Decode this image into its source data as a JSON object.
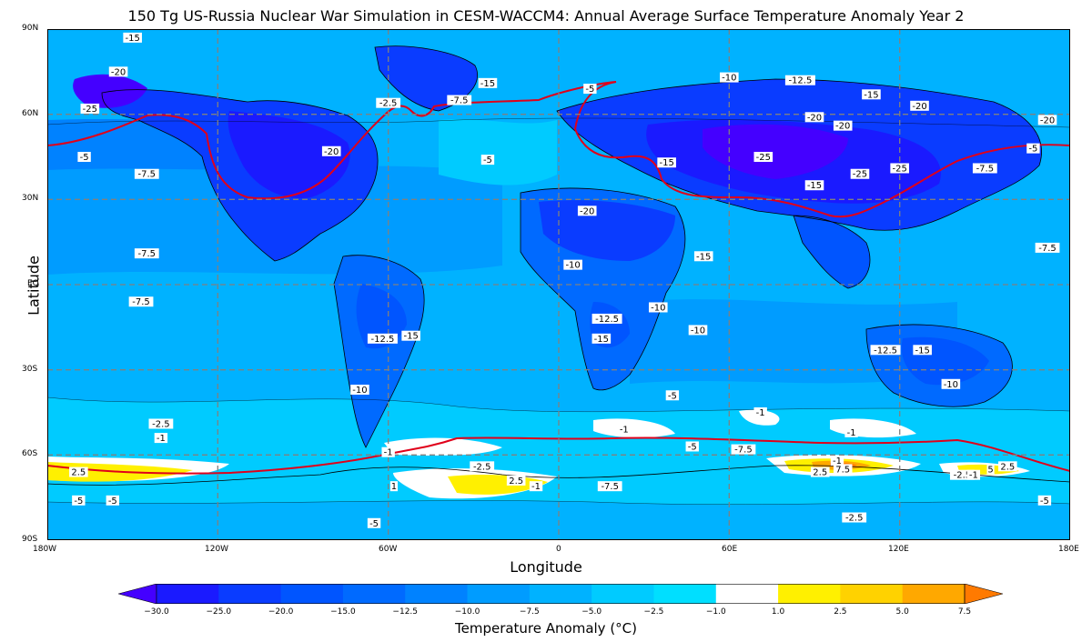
{
  "title": "150 Tg US-Russia Nuclear War Simulation in CESM-WACCM4: Annual Average Surface Temperature Anomaly Year 2",
  "axes": {
    "xlabel": "Longitude",
    "ylabel": "Latitude",
    "xticks": [
      "180W",
      "120W",
      "60W",
      "0",
      "60E",
      "120E",
      "180E"
    ],
    "yticks": [
      "90N",
      "60N",
      "30N",
      "EQ",
      "30S",
      "60S",
      "90S"
    ]
  },
  "colorbar": {
    "label": "Temperature Anomaly ( $^\\circ C$)",
    "label_display": "Temperature Anomaly (°C)",
    "ticks": [
      "−30.0",
      "−25.0",
      "−20.0",
      "−15.0",
      "−12.5",
      "−10.0",
      "−7.5",
      "−5.0",
      "−2.5",
      "−1.0",
      "1.0",
      "2.5",
      "5.0",
      "7.5"
    ],
    "levels": [
      -30,
      -25,
      -20,
      -15,
      -12.5,
      -10,
      -7.5,
      -5,
      -2.5,
      -1,
      1,
      2.5,
      5,
      7.5
    ],
    "colors": [
      "#4400ff",
      "#1a1aff",
      "#0a3cff",
      "#0055ff",
      "#006aff",
      "#0082ff",
      "#009cff",
      "#00b2ff",
      "#00cbff",
      "#00dfff",
      "#ffffff",
      "#fff000",
      "#ffd200",
      "#ffa800",
      "#ff7a00"
    ]
  },
  "chart_data": {
    "type": "heatmap",
    "title": "150 Tg US-Russia Nuclear War Simulation in CESM-WACCM4: Annual Average Surface Temperature Anomaly Year 2",
    "xlabel": "Longitude",
    "ylabel": "Latitude",
    "xlim": [
      -180,
      180
    ],
    "ylim": [
      -90,
      90
    ],
    "contour_labels": [
      {
        "lon": -150,
        "lat": 87,
        "text": "-15"
      },
      {
        "lon": -155,
        "lat": 75,
        "text": "-20"
      },
      {
        "lon": -165,
        "lat": 62,
        "text": "-25"
      },
      {
        "lon": -167,
        "lat": 45,
        "text": "-5"
      },
      {
        "lon": -145,
        "lat": 39,
        "text": "-7.5"
      },
      {
        "lon": -80,
        "lat": 47,
        "text": "-20"
      },
      {
        "lon": -60,
        "lat": 64,
        "text": "-2.5"
      },
      {
        "lon": -35,
        "lat": 65,
        "text": "-7.5"
      },
      {
        "lon": -25,
        "lat": 71,
        "text": "-15"
      },
      {
        "lon": 11,
        "lat": 69,
        "text": "-5"
      },
      {
        "lon": -25,
        "lat": 44,
        "text": "-5"
      },
      {
        "lon": 60,
        "lat": 73,
        "text": "-10"
      },
      {
        "lon": 85,
        "lat": 72,
        "text": "-12.5"
      },
      {
        "lon": 110,
        "lat": 67,
        "text": "-15"
      },
      {
        "lon": 127,
        "lat": 63,
        "text": "-20"
      },
      {
        "lon": 90,
        "lat": 59,
        "text": "-20"
      },
      {
        "lon": 100,
        "lat": 56,
        "text": "-20"
      },
      {
        "lon": 172,
        "lat": 58,
        "text": "-20"
      },
      {
        "lon": 167,
        "lat": 48,
        "text": "-5"
      },
      {
        "lon": 38,
        "lat": 43,
        "text": "-15"
      },
      {
        "lon": 72,
        "lat": 45,
        "text": "-25"
      },
      {
        "lon": 106,
        "lat": 39,
        "text": "-25"
      },
      {
        "lon": 90,
        "lat": 35,
        "text": "-15"
      },
      {
        "lon": 120,
        "lat": 41,
        "text": "-25"
      },
      {
        "lon": 150,
        "lat": 41,
        "text": "-7.5"
      },
      {
        "lon": 10,
        "lat": 26,
        "text": "-20"
      },
      {
        "lon": -145,
        "lat": 11,
        "text": "-7.5"
      },
      {
        "lon": 172,
        "lat": 13,
        "text": "-7.5"
      },
      {
        "lon": 5,
        "lat": 7,
        "text": "-10"
      },
      {
        "lon": 51,
        "lat": 10,
        "text": "-15"
      },
      {
        "lon": -147,
        "lat": -6,
        "text": "-7.5"
      },
      {
        "lon": 35,
        "lat": -8,
        "text": "-10"
      },
      {
        "lon": 17,
        "lat": -12,
        "text": "-12.5"
      },
      {
        "lon": 49,
        "lat": -16,
        "text": "-10"
      },
      {
        "lon": -62,
        "lat": -19,
        "text": "-12.5"
      },
      {
        "lon": -52,
        "lat": -18,
        "text": "-15"
      },
      {
        "lon": 15,
        "lat": -19,
        "text": "-15"
      },
      {
        "lon": 115,
        "lat": -23,
        "text": "-12.5"
      },
      {
        "lon": 128,
        "lat": -23,
        "text": "-15"
      },
      {
        "lon": -70,
        "lat": -37,
        "text": "-10"
      },
      {
        "lon": 40,
        "lat": -39,
        "text": "-5"
      },
      {
        "lon": 138,
        "lat": -35,
        "text": "-10"
      },
      {
        "lon": -140,
        "lat": -49,
        "text": "-2.5"
      },
      {
        "lon": -140,
        "lat": -54,
        "text": "-1"
      },
      {
        "lon": 23,
        "lat": -51,
        "text": "-1"
      },
      {
        "lon": 71,
        "lat": -45,
        "text": "-1"
      },
      {
        "lon": 103,
        "lat": -52,
        "text": "-1"
      },
      {
        "lon": -60,
        "lat": -59,
        "text": "-1"
      },
      {
        "lon": 47,
        "lat": -57,
        "text": "-5"
      },
      {
        "lon": 65,
        "lat": -58,
        "text": "-7.5"
      },
      {
        "lon": 98,
        "lat": -62,
        "text": "-1"
      },
      {
        "lon": -169,
        "lat": -66,
        "text": "2.5"
      },
      {
        "lon": -27,
        "lat": -64,
        "text": "-2.5"
      },
      {
        "lon": -15,
        "lat": -69,
        "text": "2.5"
      },
      {
        "lon": -8,
        "lat": -71,
        "text": "-1"
      },
      {
        "lon": -58,
        "lat": -71,
        "text": "1"
      },
      {
        "lon": 18,
        "lat": -71,
        "text": "-7.5"
      },
      {
        "lon": 92,
        "lat": -66,
        "text": "2.5"
      },
      {
        "lon": 100,
        "lat": -65,
        "text": "7.5"
      },
      {
        "lon": 142,
        "lat": -67,
        "text": "-2.5"
      },
      {
        "lon": 146,
        "lat": -67,
        "text": "-1"
      },
      {
        "lon": 152,
        "lat": -65,
        "text": "5"
      },
      {
        "lon": 158,
        "lat": -64,
        "text": "2.5"
      },
      {
        "lon": -169,
        "lat": -76,
        "text": "-5"
      },
      {
        "lon": -157,
        "lat": -76,
        "text": "-5"
      },
      {
        "lon": -65,
        "lat": -84,
        "text": "-5"
      },
      {
        "lon": 104,
        "lat": -82,
        "text": "-2.5"
      },
      {
        "lon": 171,
        "lat": -76,
        "text": "-5"
      }
    ]
  }
}
